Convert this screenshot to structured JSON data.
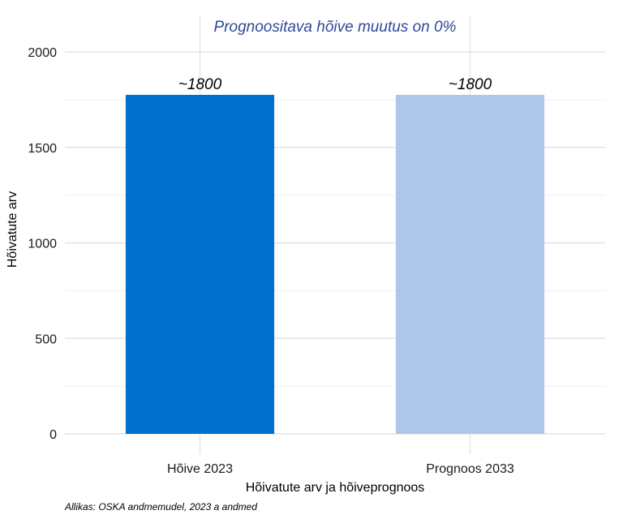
{
  "chart_data": {
    "type": "bar",
    "title": "Prognoositava hõive muutus on 0%",
    "categories": [
      "Hõive 2023",
      "Prognoos 2033"
    ],
    "values": [
      1775,
      1775
    ],
    "data_labels": [
      "~1800",
      "~1800"
    ],
    "colors": [
      "#0070cc",
      "#aec7e8"
    ],
    "xlabel": "Hõivatute arv ja hõiveprognoos",
    "ylabel": "Hõivatute arv",
    "ylim": [
      0,
      2000
    ],
    "yticks": [
      0,
      500,
      1000,
      1500,
      2000
    ],
    "ytick_labels": [
      "0",
      "500",
      "1000",
      "1500",
      "2000"
    ],
    "grid": true,
    "source": "Allikas: OSKA andmemudel, 2023 a andmed",
    "title_color": "#2e4a99"
  }
}
